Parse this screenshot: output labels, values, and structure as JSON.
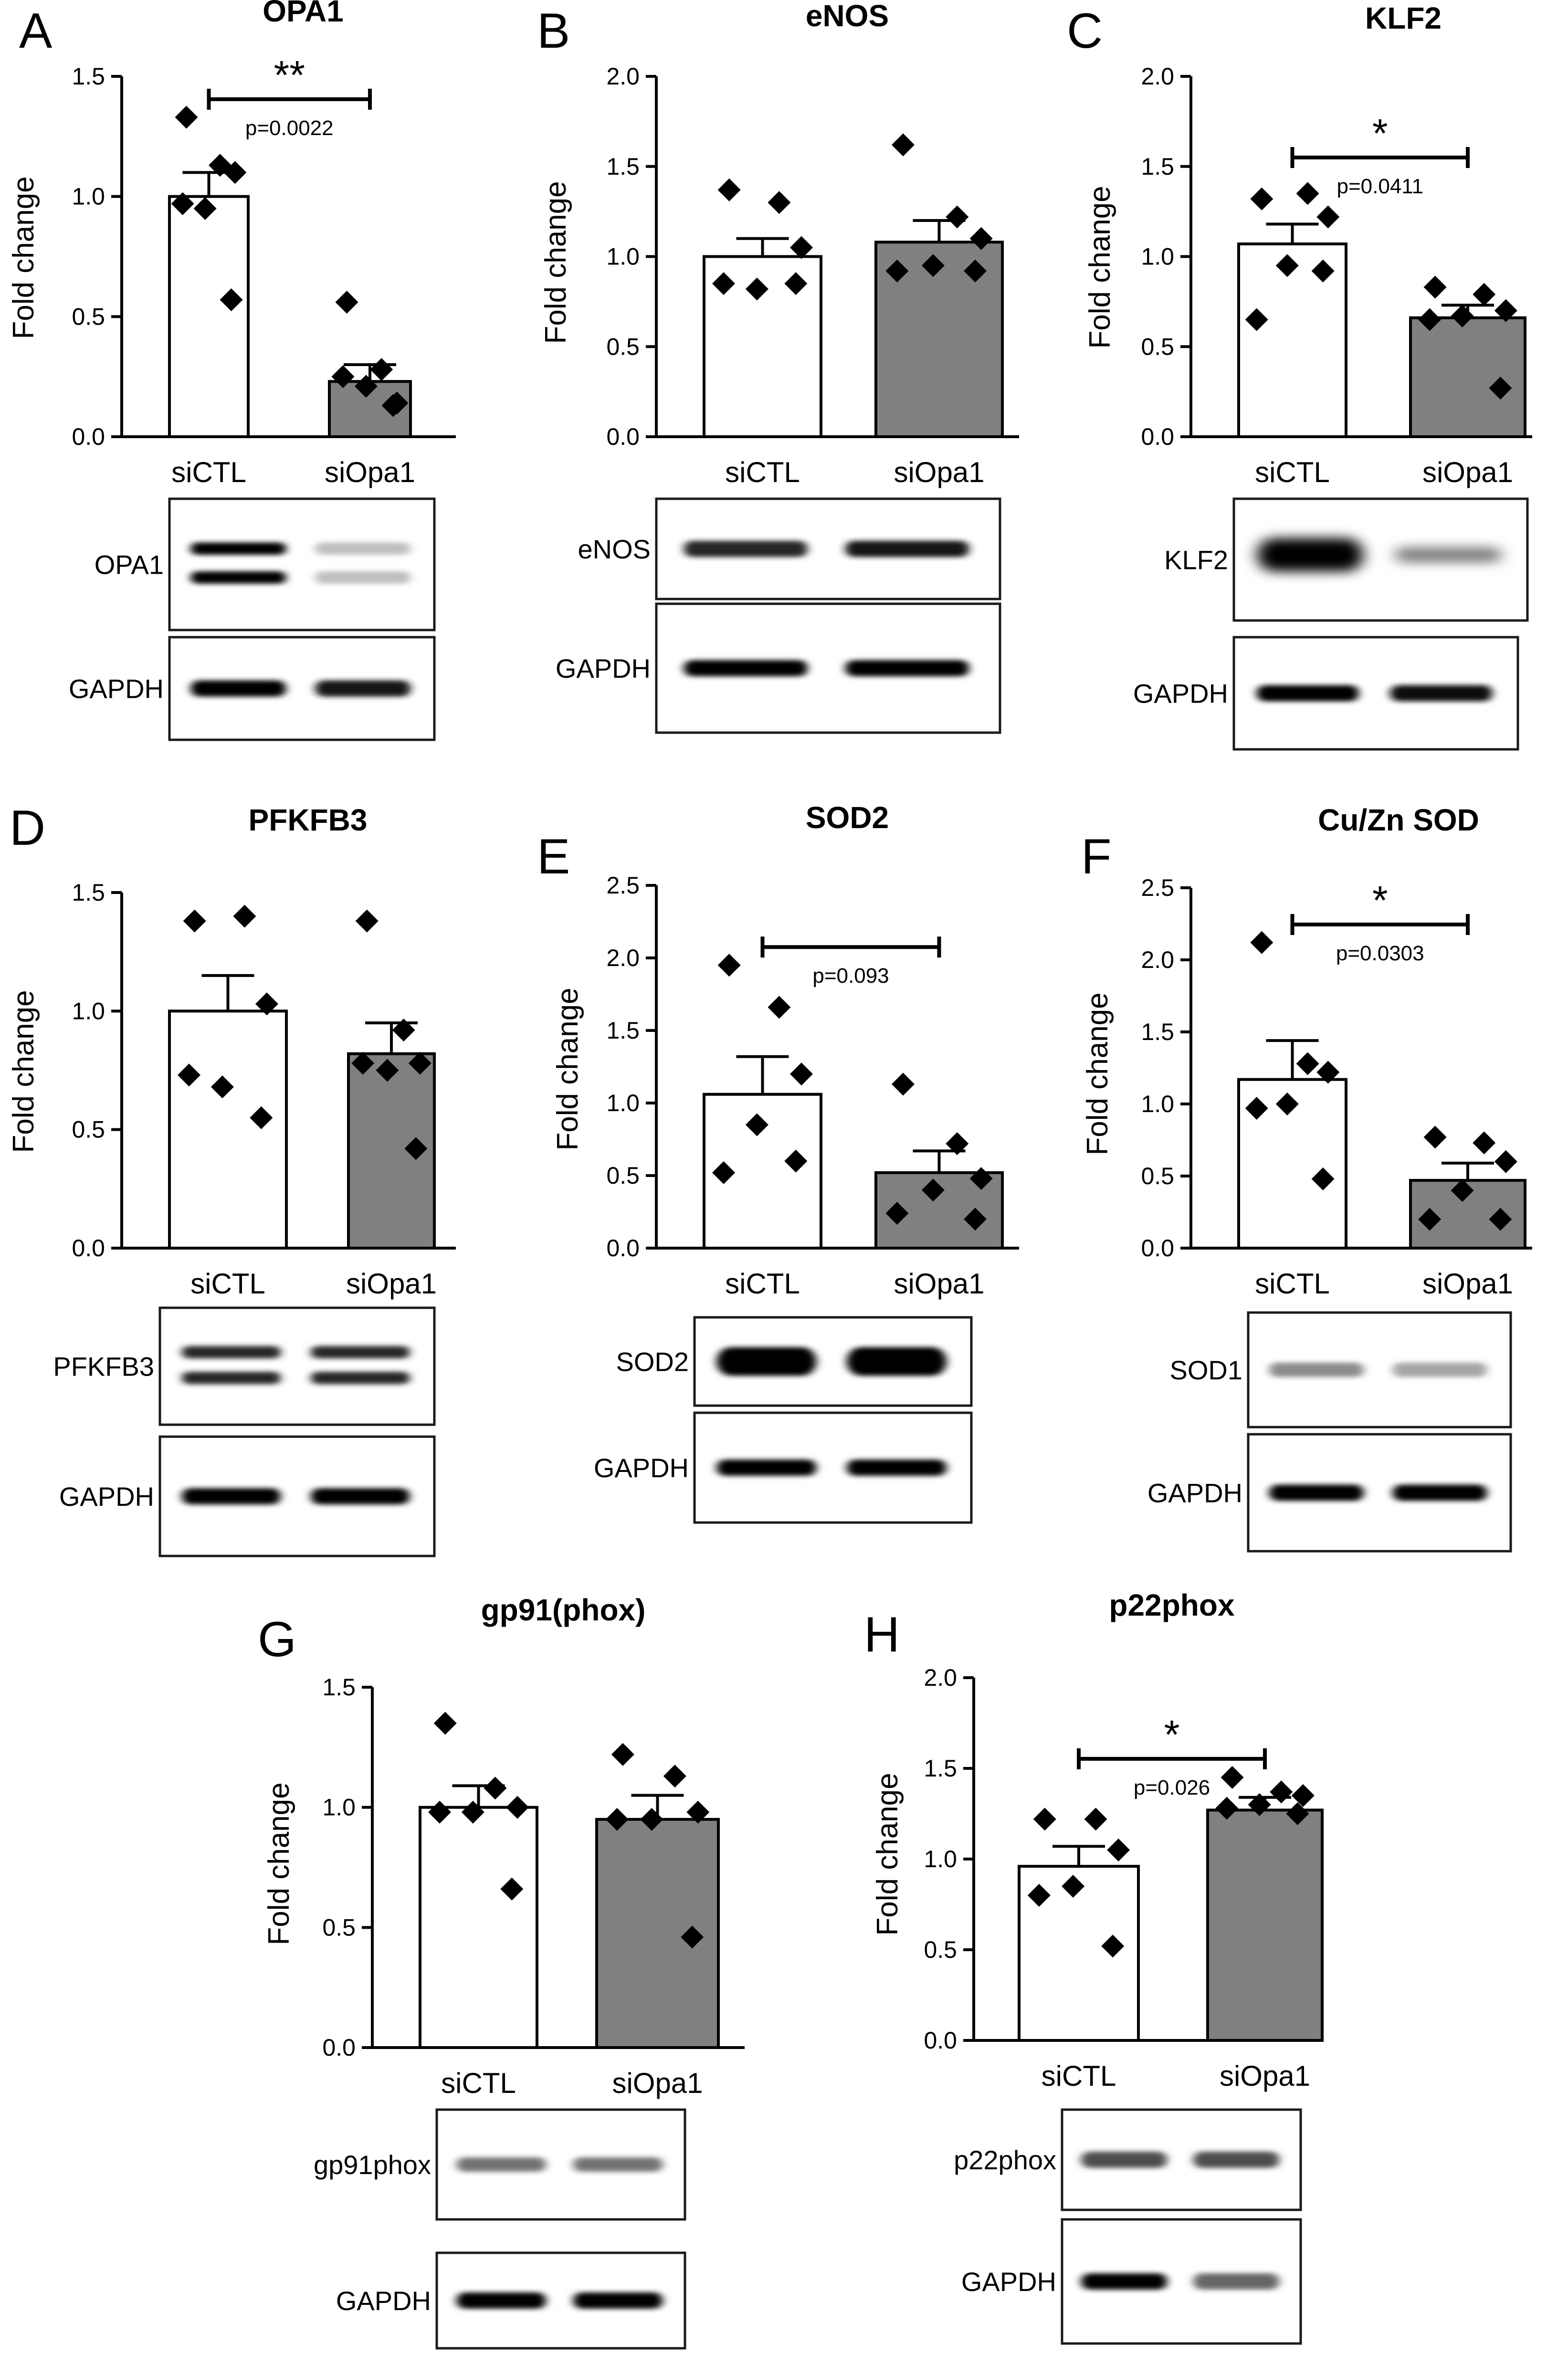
{
  "chart_data": [
    {
      "type": "bar",
      "panel": "A",
      "title": "OPA1",
      "ylabel": "Fold change",
      "categories": [
        "siCTL",
        "siOpa1"
      ],
      "ylim": [
        0,
        1.5
      ],
      "yticks": [
        "0.0",
        "0.5",
        "1.0",
        "1.5"
      ],
      "bar_colors": [
        "#ffffff",
        "#808080"
      ],
      "values": [
        1.0,
        0.23
      ],
      "errors": [
        0.1,
        0.07
      ],
      "points": [
        [
          1.33,
          1.13,
          1.1,
          0.95,
          0.97,
          0.57
        ],
        [
          0.56,
          0.28,
          0.14,
          0.21,
          0.25,
          0.13
        ]
      ],
      "significance": {
        "stars": "**",
        "p": "p=0.0022"
      },
      "blots": [
        {
          "label": "OPA1",
          "kind": "double",
          "intensity": [
            1.0,
            0.25
          ]
        },
        {
          "label": "GAPDH",
          "kind": "single",
          "intensity": [
            1.0,
            0.9
          ]
        }
      ]
    },
    {
      "type": "bar",
      "panel": "B",
      "title": "eNOS",
      "ylabel": "Fold change",
      "categories": [
        "siCTL",
        "siOpa1"
      ],
      "ylim": [
        0,
        2.0
      ],
      "yticks": [
        "0.0",
        "0.5",
        "1.0",
        "1.5",
        "2.0"
      ],
      "bar_colors": [
        "#ffffff",
        "#808080"
      ],
      "values": [
        1.0,
        1.08
      ],
      "errors": [
        0.1,
        0.12
      ],
      "points": [
        [
          1.37,
          1.3,
          1.05,
          0.82,
          0.85,
          0.85
        ],
        [
          1.62,
          1.22,
          1.1,
          0.95,
          0.92,
          0.92
        ]
      ],
      "significance": null,
      "blots": [
        {
          "label": "eNOS",
          "kind": "single",
          "intensity": [
            0.85,
            0.9
          ]
        },
        {
          "label": "GAPDH",
          "kind": "single",
          "intensity": [
            1.0,
            1.0
          ]
        }
      ]
    },
    {
      "type": "bar",
      "panel": "C",
      "title": "KLF2",
      "ylabel": "Fold change",
      "categories": [
        "siCTL",
        "siOpa1"
      ],
      "ylim": [
        0,
        2.0
      ],
      "yticks": [
        "0.0",
        "0.5",
        "1.0",
        "1.5",
        "2.0"
      ],
      "bar_colors": [
        "#ffffff",
        "#808080"
      ],
      "values": [
        1.07,
        0.66
      ],
      "errors": [
        0.11,
        0.07
      ],
      "points": [
        [
          1.32,
          1.35,
          1.22,
          0.95,
          0.65,
          0.92
        ],
        [
          0.83,
          0.79,
          0.7,
          0.67,
          0.65,
          0.27
        ]
      ],
      "significance": {
        "stars": "*",
        "p": "p=0.0411"
      },
      "blots": [
        {
          "label": "KLF2",
          "kind": "smear",
          "intensity": [
            1.0,
            0.55
          ]
        },
        {
          "label": "GAPDH",
          "kind": "single",
          "intensity": [
            1.0,
            0.95
          ]
        }
      ]
    },
    {
      "type": "bar",
      "panel": "D",
      "title": "PFKFB3",
      "ylabel": "Fold change",
      "categories": [
        "siCTL",
        "siOpa1"
      ],
      "ylim": [
        0,
        1.5
      ],
      "yticks": [
        "0.0",
        "0.5",
        "1.0",
        "1.5"
      ],
      "bar_colors": [
        "#ffffff",
        "#808080"
      ],
      "values": [
        1.0,
        0.82
      ],
      "errors": [
        0.15,
        0.13
      ],
      "points": [
        [
          1.38,
          1.4,
          1.03,
          0.68,
          0.73,
          0.55
        ],
        [
          1.38,
          0.92,
          0.78,
          0.75,
          0.78,
          0.42
        ]
      ],
      "significance": null,
      "blots": [
        {
          "label": "PFKFB3",
          "kind": "double",
          "intensity": [
            0.85,
            0.85
          ]
        },
        {
          "label": "GAPDH",
          "kind": "single",
          "intensity": [
            1.0,
            1.0
          ]
        }
      ]
    },
    {
      "type": "bar",
      "panel": "E",
      "title": "SOD2",
      "ylabel": "Fold change",
      "categories": [
        "siCTL",
        "siOpa1"
      ],
      "ylim": [
        0,
        2.5
      ],
      "yticks": [
        "0.0",
        "0.5",
        "1.0",
        "1.5",
        "2.0",
        "2.5"
      ],
      "bar_colors": [
        "#ffffff",
        "#808080"
      ],
      "values": [
        1.06,
        0.52
      ],
      "errors": [
        0.26,
        0.15
      ],
      "points": [
        [
          1.95,
          1.66,
          1.2,
          0.85,
          0.52,
          0.6
        ],
        [
          1.13,
          0.72,
          0.48,
          0.4,
          0.24,
          0.2
        ]
      ],
      "significance": {
        "stars": "",
        "p": "p=0.093"
      },
      "blots": [
        {
          "label": "SOD2",
          "kind": "thick",
          "intensity": [
            1.0,
            1.0
          ]
        },
        {
          "label": "GAPDH",
          "kind": "single",
          "intensity": [
            1.0,
            1.0
          ]
        }
      ]
    },
    {
      "type": "bar",
      "panel": "F",
      "title": "Cu/Zn SOD",
      "ylabel": "Fold change",
      "categories": [
        "siCTL",
        "siOpa1"
      ],
      "ylim": [
        0,
        2.5
      ],
      "yticks": [
        "0.0",
        "0.5",
        "1.0",
        "1.5",
        "2.0",
        "2.5"
      ],
      "bar_colors": [
        "#ffffff",
        "#808080"
      ],
      "values": [
        1.17,
        0.47
      ],
      "errors": [
        0.27,
        0.12
      ],
      "points": [
        [
          2.12,
          1.28,
          1.22,
          1.0,
          0.97,
          0.48
        ],
        [
          0.77,
          0.73,
          0.6,
          0.4,
          0.2,
          0.2
        ]
      ],
      "significance": {
        "stars": "*",
        "p": "p=0.0303"
      },
      "blots": [
        {
          "label": "SOD1",
          "kind": "faint",
          "intensity": [
            0.45,
            0.35
          ]
        },
        {
          "label": "GAPDH",
          "kind": "single",
          "intensity": [
            1.0,
            1.0
          ]
        }
      ]
    },
    {
      "type": "bar",
      "panel": "G",
      "title": "gp91(phox)",
      "ylabel": "Fold change",
      "categories": [
        "siCTL",
        "siOpa1"
      ],
      "ylim": [
        0,
        1.5
      ],
      "yticks": [
        "0.0",
        "0.5",
        "1.0",
        "1.5"
      ],
      "bar_colors": [
        "#ffffff",
        "#808080"
      ],
      "values": [
        1.0,
        0.95
      ],
      "errors": [
        0.09,
        0.1
      ],
      "points": [
        [
          1.35,
          1.08,
          1.0,
          0.98,
          0.98,
          0.66
        ],
        [
          1.22,
          1.13,
          0.98,
          0.95,
          0.95,
          0.46
        ]
      ],
      "significance": null,
      "blots": [
        {
          "label": "gp91phox",
          "kind": "faint",
          "intensity": [
            0.55,
            0.55
          ]
        },
        {
          "label": "GAPDH",
          "kind": "single",
          "intensity": [
            1.0,
            1.0
          ]
        }
      ]
    },
    {
      "type": "bar",
      "panel": "H",
      "title": "p22phox",
      "ylabel": "Fold change",
      "categories": [
        "siCTL",
        "siOpa1"
      ],
      "ylim": [
        0,
        2.0
      ],
      "yticks": [
        "0.0",
        "0.5",
        "1.0",
        "1.5",
        "2.0"
      ],
      "bar_colors": [
        "#ffffff",
        "#808080"
      ],
      "values": [
        0.96,
        1.27
      ],
      "errors": [
        0.11,
        0.07
      ],
      "points": [
        [
          1.22,
          1.22,
          1.05,
          0.85,
          0.8,
          0.52
        ],
        [
          1.45,
          1.37,
          1.35,
          1.3,
          1.28,
          1.25
        ]
      ],
      "significance": {
        "stars": "*",
        "p": "p=0.026"
      },
      "blots": [
        {
          "label": "p22phox",
          "kind": "single",
          "intensity": [
            0.7,
            0.7
          ]
        },
        {
          "label": "GAPDH",
          "kind": "single",
          "intensity": [
            1.0,
            0.6
          ]
        }
      ]
    }
  ]
}
